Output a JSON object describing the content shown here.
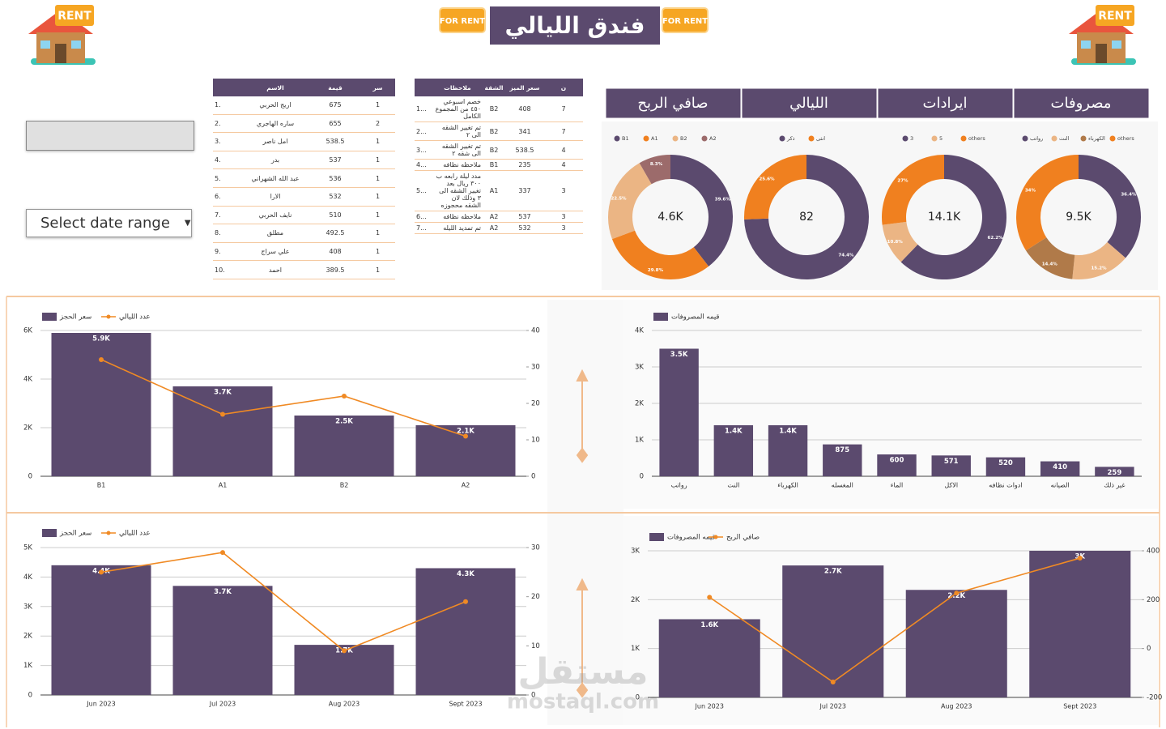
{
  "header": {
    "title": "فندق الليالي",
    "rent_sign": "RENT",
    "for_rent_sign": "FOR RENT"
  },
  "date_control": {
    "label": "Select date range"
  },
  "kpi_tabs": [
    "صافي الربح",
    "الليالي",
    "ايرادات",
    "مصروفات"
  ],
  "tables": [
    {
      "columns": [
        "الاسم",
        "قيمة",
        "سر"
      ],
      "rows": [
        [
          "1.",
          "اريج الحربي",
          675,
          1
        ],
        [
          "2.",
          "ساره الهاجري",
          655,
          2
        ],
        [
          "3.",
          "امل ناصر",
          538.5,
          1
        ],
        [
          "4.",
          "بدر",
          537,
          1
        ],
        [
          "5.",
          "عبد الله الشهراني",
          536,
          1
        ],
        [
          "6.",
          "الارا",
          532,
          1
        ],
        [
          "7.",
          "نايف الحربي",
          510,
          1
        ],
        [
          "8.",
          "مطلق",
          492.5,
          1
        ],
        [
          "9.",
          "علي سراج",
          408,
          1
        ],
        [
          "10.",
          "احمد",
          389.5,
          1
        ]
      ]
    },
    {
      "columns": [
        "ملاحظات",
        "الشقة",
        "سعر الميز",
        "ن"
      ],
      "rows": [
        [
          "1...",
          "خصم اسبوعي ٤٥٠ من المجموع الكامل",
          "B2",
          408,
          7
        ],
        [
          "2...",
          "تم تغيير الشقه الى ٢",
          "B2",
          341,
          7
        ],
        [
          "3...",
          "تم تغيير الشقه الى شقه ٢",
          "B2",
          538.5,
          4
        ],
        [
          "4...",
          "ملاحظه نظافه",
          "B1",
          235,
          4
        ],
        [
          "5...",
          "مدد ليلة رابعه ب ٣٠٠ ريال بعد تغيير الشقه الى ٣ وذلك لان الشقه محجوزه",
          "A1",
          337,
          3
        ],
        [
          "6...",
          "ملاحظه نظافه",
          "A2",
          537,
          3
        ],
        [
          "7...",
          "تم تمديد الليله",
          "A2",
          532,
          3
        ]
      ]
    }
  ],
  "chart_data": [
    {
      "type": "pie",
      "center_label": "4.6K",
      "categories": [
        "B1",
        "A1",
        "B2",
        "A2"
      ],
      "values": [
        39.6,
        29.8,
        22.5,
        8.3
      ],
      "value_labels": [
        "39.6%",
        "29.8%",
        "22.5%",
        "8.3%"
      ],
      "colors": [
        "#5b4a6e",
        "#f0801f",
        "#ebb584",
        "#9c6b6b"
      ]
    },
    {
      "type": "pie",
      "center_label": "82",
      "categories": [
        "ذكر",
        "انثى"
      ],
      "values": [
        74.4,
        25.6
      ],
      "value_labels": [
        "74.4%",
        "25.6%"
      ],
      "colors": [
        "#5b4a6e",
        "#f0801f"
      ]
    },
    {
      "type": "pie",
      "center_label": "14.1K",
      "categories": [
        "3",
        "5",
        "others"
      ],
      "values": [
        62.2,
        10.8,
        27
      ],
      "value_labels": [
        "62.2%",
        "10.8%",
        "27%"
      ],
      "colors": [
        "#5b4a6e",
        "#ebb584",
        "#f0801f"
      ]
    },
    {
      "type": "pie",
      "center_label": "9.5K",
      "categories": [
        "رواتب",
        "النت",
        "الكهرباء",
        "others"
      ],
      "values": [
        36.4,
        15.2,
        14.4,
        34
      ],
      "value_labels": [
        "36.4%",
        "15.2%",
        "14.4%",
        "34%"
      ],
      "colors": [
        "#5b4a6e",
        "#ebb584",
        "#b07a49",
        "#f0801f"
      ]
    },
    {
      "type": "combo",
      "categories": [
        "B1",
        "A1",
        "B2",
        "A2"
      ],
      "series": [
        {
          "name": "سعر الحجز",
          "type": "bar",
          "color": "#5b4a6e",
          "values": [
            5900,
            3700,
            2500,
            2100
          ],
          "value_labels": [
            "5.9K",
            "3.7K",
            "2.5K",
            "2.1K"
          ]
        },
        {
          "name": "عدد الليالي",
          "type": "line",
          "axis": "y2",
          "color": "#f08a24",
          "values": [
            32,
            17,
            22,
            11
          ]
        }
      ],
      "ylim": [
        0,
        6000
      ],
      "yticks": [
        0,
        {
          "value": 2000,
          "label": "2K"
        },
        {
          "value": 4000,
          "label": "4K"
        },
        {
          "value": 6000,
          "label": "6K"
        }
      ],
      "y2lim": [
        0,
        40
      ],
      "y2ticks": [
        0,
        10,
        20,
        30,
        40
      ],
      "grid": true
    },
    {
      "type": "bar",
      "categories": [
        "رواتب",
        "النت",
        "الكهرباء",
        "المغسله",
        "الماء",
        "الاكل",
        "ادوات نظافه",
        "الصيانه",
        "غير ذلك"
      ],
      "series": [
        {
          "name": "قيمه المصروفات",
          "type": "bar",
          "color": "#5b4a6e",
          "values": [
            3500,
            1400,
            1400,
            875,
            600,
            571,
            520,
            410,
            259
          ],
          "value_labels": [
            "3.5K",
            "1.4K",
            "1.4K",
            "875",
            "600",
            "571",
            "520",
            "410",
            "259"
          ]
        }
      ],
      "ylim": [
        0,
        4000
      ],
      "yticks": [
        0,
        {
          "value": 1000,
          "label": "1K"
        },
        {
          "value": 2000,
          "label": "2K"
        },
        {
          "value": 3000,
          "label": "3K"
        },
        {
          "value": 4000,
          "label": "4K"
        }
      ],
      "grid": true
    },
    {
      "type": "combo",
      "categories": [
        "Jun 2023",
        "Jul 2023",
        "Aug 2023",
        "Sept 2023"
      ],
      "series": [
        {
          "name": "سعر الحجز",
          "type": "bar",
          "color": "#5b4a6e",
          "values": [
            4400,
            3700,
            1700,
            4300
          ],
          "value_labels": [
            "4.4K",
            "3.7K",
            "1.7K",
            "4.3K"
          ]
        },
        {
          "name": "عدد الليالي",
          "type": "line",
          "axis": "y2",
          "color": "#f08a24",
          "values": [
            25,
            29,
            9,
            19
          ]
        }
      ],
      "ylim": [
        0,
        5000
      ],
      "yticks": [
        0,
        {
          "value": 1000,
          "label": "1K"
        },
        {
          "value": 2000,
          "label": "2K"
        },
        {
          "value": 3000,
          "label": "3K"
        },
        {
          "value": 4000,
          "label": "4K"
        },
        {
          "value": 5000,
          "label": "5K"
        }
      ],
      "y2lim": [
        0,
        30
      ],
      "y2ticks": [
        0,
        10,
        20,
        30
      ],
      "grid": true
    },
    {
      "type": "combo",
      "categories": [
        "Jun 2023",
        "Jul 2023",
        "Aug 2023",
        "Sept 2023"
      ],
      "series": [
        {
          "name": "قيمه المصروفات",
          "type": "bar",
          "color": "#5b4a6e",
          "values": [
            1600,
            2700,
            2200,
            3000
          ],
          "value_labels": [
            "1.6K",
            "2.7K",
            "2.2K",
            "3K"
          ]
        },
        {
          "name": "صافي الربح",
          "type": "line",
          "axis": "y2",
          "color": "#f08a24",
          "values": [
            210,
            -137,
            227,
            370
          ]
        }
      ],
      "ylim": [
        0,
        3000
      ],
      "yticks": [
        0,
        {
          "value": 1000,
          "label": "1K"
        },
        {
          "value": 2000,
          "label": "2K"
        },
        {
          "value": 3000,
          "label": "3K"
        }
      ],
      "y2lim": [
        -200,
        400
      ],
      "y2ticks": [
        -200,
        0,
        200,
        400
      ],
      "grid": true
    }
  ],
  "watermark": {
    "arabic": "مستقل",
    "latin": "mostaql.com"
  }
}
